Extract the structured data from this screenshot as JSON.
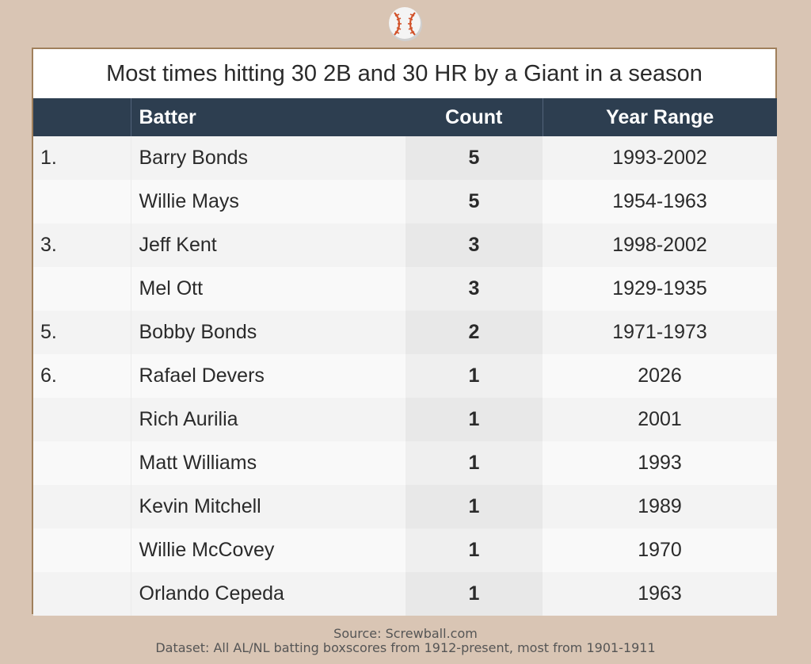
{
  "chart_data": {
    "type": "table",
    "title": "Most times hitting 30 2B and 30 HR by a Giant in a season",
    "columns": [
      "",
      "Batter",
      "Count",
      "Year Range"
    ],
    "rows": [
      {
        "rank": "1.",
        "batter": "Barry Bonds",
        "count": "5",
        "years": "1993-2002"
      },
      {
        "rank": "",
        "batter": "Willie Mays",
        "count": "5",
        "years": "1954-1963"
      },
      {
        "rank": "3.",
        "batter": "Jeff Kent",
        "count": "3",
        "years": "1998-2002"
      },
      {
        "rank": "",
        "batter": "Mel Ott",
        "count": "3",
        "years": "1929-1935"
      },
      {
        "rank": "5.",
        "batter": "Bobby Bonds",
        "count": "2",
        "years": "1971-1973"
      },
      {
        "rank": "6.",
        "batter": "Rafael Devers",
        "count": "1",
        "years": "2026"
      },
      {
        "rank": "",
        "batter": "Rich Aurilia",
        "count": "1",
        "years": "2001"
      },
      {
        "rank": "",
        "batter": "Matt Williams",
        "count": "1",
        "years": "1993"
      },
      {
        "rank": "",
        "batter": "Kevin Mitchell",
        "count": "1",
        "years": "1989"
      },
      {
        "rank": "",
        "batter": "Willie McCovey",
        "count": "1",
        "years": "1970"
      },
      {
        "rank": "",
        "batter": "Orlando Cepeda",
        "count": "1",
        "years": "1963"
      }
    ]
  },
  "footer": {
    "source": "Source: Screwball.com",
    "dataset": "Dataset: All AL/NL batting boxscores from 1912-present, most from 1901-1911"
  },
  "logo": {
    "icon": "baseball-icon"
  },
  "colors": {
    "background": "#d9c5b4",
    "header": "#2d3e50",
    "border": "#a0805c",
    "stitch": "#d2522a"
  }
}
